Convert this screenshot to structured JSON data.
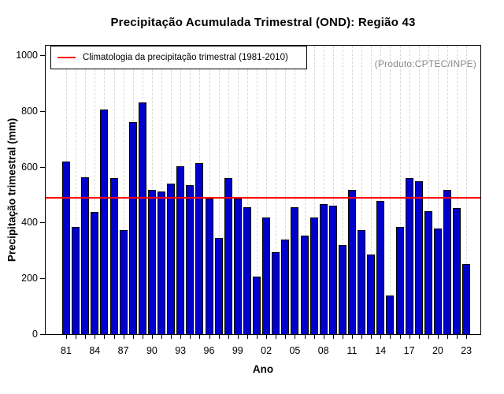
{
  "title": "Precipitação Acumulada Trimestral (OND): Região 43",
  "annotation": "(Produto:CPTEC/INPE)",
  "colors": {
    "bar": "#0000CD",
    "bar_border": "#000000",
    "climatology_line": "#FF0000",
    "grid": "#D9D9D9",
    "annotation_text": "#8A8A8A"
  },
  "chart_data": {
    "type": "bar",
    "title": "Precipitação Acumulada Trimestral (OND): Região 43",
    "xlabel": "Ano",
    "ylabel": "Precipitação trimestral (mm)",
    "ylim": [
      0,
      1000
    ],
    "yticks": [
      0,
      200,
      400,
      600,
      800,
      1000
    ],
    "grid": "vertical-dashed-per-year",
    "legend_position": "top-left",
    "legend_label": "Climatologia da precipitação trimestral (1981-2010)",
    "climatology_value": 490,
    "x": [
      1981,
      1982,
      1983,
      1984,
      1985,
      1986,
      1987,
      1988,
      1989,
      1990,
      1991,
      1992,
      1993,
      1994,
      1995,
      1996,
      1997,
      1998,
      1999,
      2000,
      2001,
      2002,
      2003,
      2004,
      2005,
      2006,
      2007,
      2008,
      2009,
      2010,
      2011,
      2012,
      2013,
      2014,
      2015,
      2016,
      2017,
      2018,
      2019,
      2020,
      2021,
      2022,
      2023
    ],
    "x_label_every": 3,
    "x_tick_labels": [
      "81",
      "84",
      "87",
      "90",
      "93",
      "96",
      "99",
      "02",
      "05",
      "08",
      "11",
      "14",
      "17",
      "20",
      "23"
    ],
    "series": [
      {
        "name": "Precipitação acumulada trimestral (OND)",
        "values": [
          620,
          383,
          562,
          437,
          805,
          560,
          372,
          760,
          830,
          518,
          510,
          540,
          603,
          535,
          612,
          487,
          345,
          560,
          486,
          455,
          207,
          417,
          295,
          340,
          455,
          352,
          419,
          467,
          461,
          320,
          518,
          373,
          285,
          478,
          138,
          383,
          558,
          548,
          441,
          379,
          516,
          453,
          250
        ]
      }
    ]
  }
}
